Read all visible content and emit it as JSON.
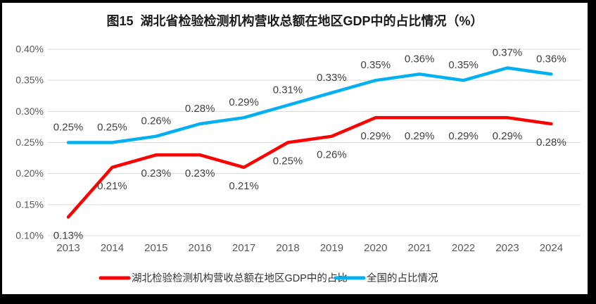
{
  "title": "图15  湖北省检验检测机构营收总额在地区GDP中的占比情况（%）",
  "colors": {
    "hubei_series": "#FF0000",
    "national_series": "#00B0F0",
    "gridline": "#D9D9D9",
    "axis_text": "#595959",
    "data_label_text": "#404040",
    "legend_text": "#333333",
    "title_text": "#1A1A1A",
    "frame_border": "#000000",
    "background": "#FFFFFF"
  },
  "chart_data": {
    "type": "line",
    "title": "图15  湖北省检验检测机构营收总额在地区GDP中的占比情况（%）",
    "unit": "percent of regional GDP",
    "categories": [
      "2013",
      "2014",
      "2015",
      "2016",
      "2017",
      "2018",
      "2019",
      "2020",
      "2021",
      "2022",
      "2023",
      "2024"
    ],
    "series": [
      {
        "key": "hubei",
        "name": "湖北检验检测机构营收总额在地区GDP中的占比",
        "color": "#FF0000",
        "label_position": "below",
        "values": [
          0.13,
          0.21,
          0.23,
          0.23,
          0.21,
          0.25,
          0.26,
          0.29,
          0.29,
          0.29,
          0.29,
          0.28
        ],
        "labels": [
          "0.13%",
          "0.21%",
          "0.23%",
          "0.23%",
          "0.21%",
          "0.25%",
          "0.26%",
          "0.29%",
          "0.29%",
          "0.29%",
          "0.29%",
          "0.28%"
        ]
      },
      {
        "key": "national",
        "name": "全国的占比情况",
        "color": "#00B0F0",
        "label_position": "above",
        "values": [
          0.25,
          0.25,
          0.26,
          0.28,
          0.29,
          0.31,
          0.33,
          0.35,
          0.36,
          0.35,
          0.37,
          0.36
        ],
        "labels": [
          "0.25%",
          "0.25%",
          "0.26%",
          "0.28%",
          "0.29%",
          "0.31%",
          "0.33%",
          "0.35%",
          "0.36%",
          "0.35%",
          "0.37%",
          "0.36%"
        ]
      }
    ],
    "y_axis": {
      "min": 0.1,
      "max": 0.4,
      "step": 0.05,
      "tick_values": [
        0.4,
        0.35,
        0.3,
        0.25,
        0.2,
        0.15,
        0.1
      ],
      "tick_labels": [
        "0.40%",
        "0.35%",
        "0.30%",
        "0.25%",
        "0.20%",
        "0.15%",
        "0.10%"
      ]
    },
    "grid": "horizontal",
    "legend_position": "bottom"
  }
}
